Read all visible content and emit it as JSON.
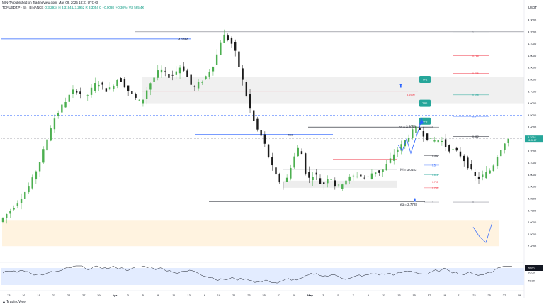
{
  "header": {
    "publisher": "MIN-TA published on TradingView.com, May 09, 2025 18:31 UTC+3",
    "symbol": "TONUSDT.P · 4h · BINANCE",
    "ohlc": "O 3.2934 H 3.3194 L 3.2962 R 3.3054 C +0.0098 (+0.30%)  Vol 565.4K",
    "currency": "USDT",
    "footer": "TradingView"
  },
  "colors": {
    "up": "#089981",
    "down": "#131722",
    "candle_up": "#4caf50",
    "candle_down": "#1b1b1b",
    "blue": "#2962ff",
    "teal": "#26a69a",
    "red": "#f23645"
  },
  "chart_data": {
    "type": "candlestick",
    "title": "TONUSDT.P 4h",
    "price_axis": {
      "range": [
        2.3,
        4.3
      ],
      "ticks": [
        "4.3000",
        "4.2000",
        "4.1000",
        "4.0000",
        "3.9000",
        "3.8000",
        "3.7000",
        "3.6000",
        "3.5000",
        "3.4000",
        "3.3000",
        "3.2000",
        "3.1000",
        "3.0000",
        "2.9000",
        "2.8000",
        "2.7000",
        "2.6000",
        "2.5000",
        "2.4000"
      ],
      "current_price": "3.3054",
      "current_countdown": "01:28:17"
    },
    "time_axis": [
      "13",
      "16",
      "19",
      "21",
      "24",
      "27",
      "29",
      "Apr",
      "3",
      "5",
      "9",
      "11",
      "13",
      "16",
      "19",
      "21",
      "23",
      "25",
      "27",
      "29",
      "May",
      "3",
      "5",
      "7",
      "9",
      "11",
      "13",
      "15",
      "17",
      "19",
      "21",
      "23",
      "25",
      "27",
      "29"
    ],
    "price_path": [
      [
        0,
        2.62
      ],
      [
        4,
        2.75
      ],
      [
        8,
        2.92
      ],
      [
        11,
        3.15
      ],
      [
        14,
        3.45
      ],
      [
        17,
        3.6
      ],
      [
        20,
        3.72
      ],
      [
        23,
        3.65
      ],
      [
        26,
        3.78
      ],
      [
        29,
        3.7
      ],
      [
        32,
        3.82
      ],
      [
        35,
        3.68
      ],
      [
        38,
        3.6
      ],
      [
        40,
        3.75
      ],
      [
        43,
        3.88
      ],
      [
        46,
        3.82
      ],
      [
        49,
        3.92
      ],
      [
        52,
        3.72
      ],
      [
        55,
        3.8
      ],
      [
        58,
        3.95
      ],
      [
        60,
        4.18
      ],
      [
        61.5,
        4.14
      ],
      [
        63,
        4.08
      ],
      [
        65,
        3.85
      ],
      [
        67,
        3.6
      ],
      [
        69,
        3.4
      ],
      [
        71,
        3.3
      ],
      [
        73,
        3.1
      ],
      [
        75,
        2.95
      ],
      [
        77,
        2.92
      ],
      [
        79,
        3.12
      ],
      [
        81,
        3.25
      ],
      [
        83,
        2.95
      ],
      [
        85,
        3.02
      ],
      [
        87,
        2.9
      ],
      [
        89,
        3.0
      ],
      [
        91,
        2.88
      ],
      [
        93,
        2.95
      ],
      [
        95,
        2.98
      ],
      [
        97,
        3.0
      ],
      [
        99,
        2.96
      ],
      [
        101,
        3.03
      ],
      [
        103,
        3.02
      ],
      [
        105,
        3.1
      ],
      [
        107,
        3.2
      ],
      [
        109,
        3.26
      ],
      [
        111,
        3.35
      ],
      [
        113,
        3.4
      ],
      [
        115,
        3.32
      ],
      [
        117,
        3.28
      ],
      [
        119,
        3.3
      ],
      [
        121,
        3.22
      ],
      [
        123,
        3.2
      ],
      [
        125,
        3.15
      ],
      [
        127,
        3.05
      ],
      [
        129,
        2.96
      ],
      [
        131,
        3.0
      ],
      [
        133,
        3.05
      ],
      [
        135,
        3.2
      ],
      [
        137,
        3.3
      ]
    ],
    "levels": {
      "top_high": "4.1396",
      "equal_high": "eq = 3.3998",
      "fvg_level": "3.6990",
      "eq_low": "eq = 2.7728",
      "fib_mid": "fvl = 3.0453",
      "bos": "bos"
    },
    "fib_labels": [
      {
        "label": "1",
        "value": 4.2
      },
      {
        "label": "0.786",
        "value": 4.0
      },
      {
        "label": "0.705",
        "value": 3.85
      },
      {
        "label": "0.618",
        "value": 3.67
      },
      {
        "label": "0.5",
        "value": 3.49
      },
      {
        "label": "0.382",
        "value": 3.32
      },
      {
        "label": "0",
        "value": 2.77
      }
    ],
    "fib_labels_right": [
      {
        "label": "0",
        "value": 3.4
      },
      {
        "label": "0.382",
        "value": 3.16
      },
      {
        "label": "0.5",
        "value": 3.08
      },
      {
        "label": "0.618",
        "value": 3.0
      },
      {
        "label": "0.705",
        "value": 2.94
      },
      {
        "label": "0.786",
        "value": 2.89
      },
      {
        "label": "1",
        "value": 2.77
      }
    ],
    "targets": [
      "TP1",
      "TP2",
      "TP3"
    ],
    "rsi": {
      "ticks": [
        "60.00",
        "40.00"
      ],
      "current": "70.00",
      "range": [
        20,
        80
      ]
    }
  }
}
